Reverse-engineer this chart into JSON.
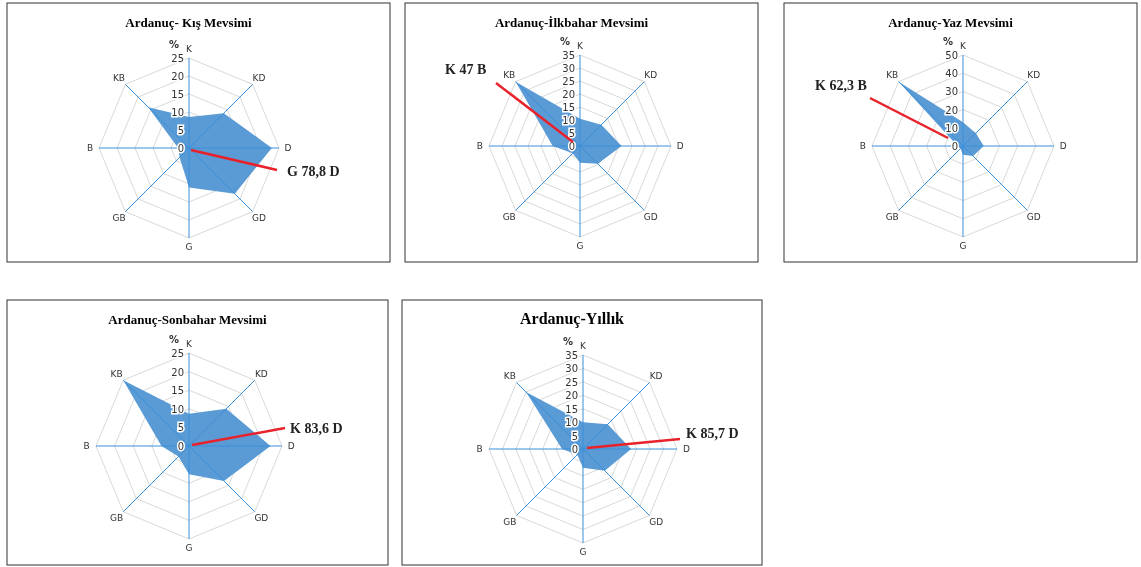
{
  "chart_data": [
    {
      "type": "radar",
      "title": "Ardanuç-  Kış Mevsimi",
      "ylabel": "%",
      "categories": [
        "K",
        "KD",
        "D",
        "GD",
        "G",
        "GB",
        "B",
        "KB"
      ],
      "ylim": [
        0,
        25
      ],
      "yticks": [
        0,
        5,
        10,
        15,
        20,
        25
      ],
      "grid": true,
      "annotations": [
        "G 78,8 D"
      ],
      "series": [
        {
          "color": "#5b9bd5",
          "values": [
            8.6,
            13.7,
            23,
            18,
            11,
            3.7,
            3,
            16
          ]
        }
      ]
    },
    {
      "type": "radar",
      "title": "Ardanuç-İlkbahar  Mevsimi",
      "ylabel": "%",
      "categories": [
        "K",
        "KD",
        "D",
        "GD",
        "G",
        "GB",
        "B",
        "KB"
      ],
      "ylim": [
        0,
        35
      ],
      "yticks": [
        0,
        5,
        10,
        15,
        20,
        25,
        30,
        35
      ],
      "grid": true,
      "annotations": [
        "K 47 B"
      ],
      "series": [
        {
          "color": "#5b9bd5",
          "values": [
            10.5,
            11.6,
            16,
            9.7,
            6.4,
            4,
            10.5,
            35
          ]
        }
      ]
    },
    {
      "type": "radar",
      "title": "Ardanuç-Yaz  Mevsimi",
      "ylabel": "%",
      "categories": [
        "K",
        "KD",
        "D",
        "GD",
        "G",
        "GB",
        "B",
        "KB"
      ],
      "ylim": [
        0,
        50
      ],
      "yticks": [
        0,
        10,
        20,
        30,
        40,
        50
      ],
      "grid": true,
      "annotations": [
        "K 62,3 B"
      ],
      "series": [
        {
          "color": "#5b9bd5",
          "values": [
            13,
            10,
            11.4,
            7.8,
            4.8,
            2,
            3,
            50
          ]
        }
      ]
    },
    {
      "type": "radar",
      "title": "Ardanuç-Sonbahar  Mevsimi",
      "ylabel": "%",
      "categories": [
        "K",
        "KD",
        "D",
        "GD",
        "G",
        "GB",
        "B",
        "KB"
      ],
      "ylim": [
        0,
        25
      ],
      "yticks": [
        0,
        5,
        10,
        15,
        20,
        25
      ],
      "grid": true,
      "annotations": [
        "K 83,6 D"
      ],
      "series": [
        {
          "color": "#5b9bd5",
          "values": [
            8.7,
            14.2,
            21.9,
            13.3,
            7.6,
            4,
            7.4,
            25
          ]
        }
      ]
    },
    {
      "type": "radar",
      "title": "Ardanuç-Yıllık",
      "ylabel": "%",
      "categories": [
        "K",
        "KD",
        "D",
        "GD",
        "G",
        "GB",
        "B",
        "KB"
      ],
      "ylim": [
        0,
        35
      ],
      "yticks": [
        0,
        5,
        10,
        15,
        20,
        25,
        30,
        35
      ],
      "grid": true,
      "annotations": [
        "K 85,7 D"
      ],
      "series": [
        {
          "color": "#5b9bd5",
          "values": [
            10,
            13,
            17.9,
            11.5,
            7,
            3,
            7.8,
            30
          ]
        }
      ]
    }
  ]
}
